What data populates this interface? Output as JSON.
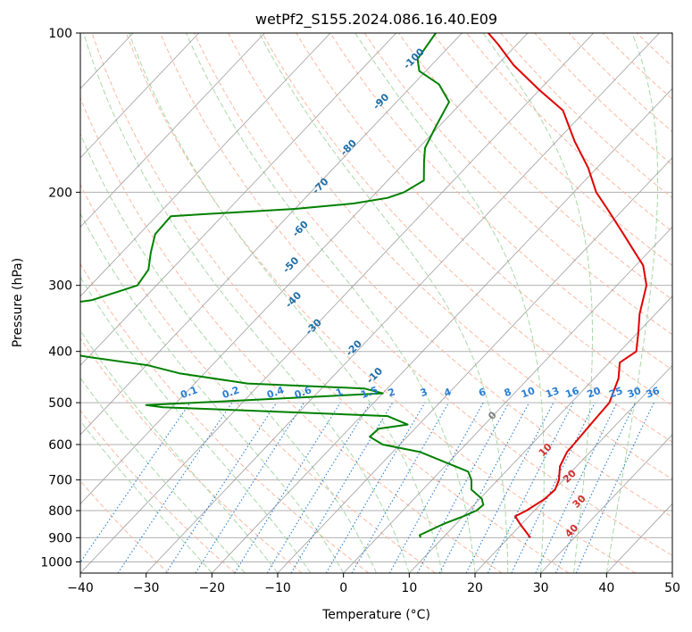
{
  "chart_data": {
    "type": "line",
    "subtype": "skew-t log-p diagram",
    "title": "wetPf2_S155.2024.086.16.40.E09",
    "xlabel": "Temperature (°C)",
    "ylabel": "Pressure (hPa)",
    "xlim": [
      -40,
      50
    ],
    "ylim": [
      1050,
      100
    ],
    "y_scale": "log",
    "grid": true,
    "x_ticks": [
      -40,
      -30,
      -20,
      -10,
      0,
      10,
      20,
      30,
      40,
      50
    ],
    "y_ticks": [
      100,
      200,
      300,
      400,
      500,
      600,
      700,
      800,
      900,
      1000
    ],
    "colors": {
      "temperature": "#e00000",
      "dewpoint": "#008000",
      "dry_adiabat": "#fcb8a0",
      "moist_adiabat": "#a8d8a8",
      "mixing_ratio": "#2a7fd4",
      "isotherm": "#999999",
      "cold_isotherm_label": "#1f6fa8",
      "warm_isotherm_label": "#d03030",
      "zero_label": "#808080"
    },
    "series": [
      {
        "key": "temperature",
        "points": [
          [
            23.3,
            900
          ],
          [
            19.9,
            850
          ],
          [
            17.9,
            820
          ],
          [
            18.8,
            800
          ],
          [
            19.9,
            760
          ],
          [
            20.1,
            730
          ],
          [
            19.3,
            700
          ],
          [
            17.5,
            660
          ],
          [
            16.5,
            620
          ],
          [
            16.4,
            600
          ],
          [
            16.1,
            550
          ],
          [
            15.8,
            500
          ],
          [
            13.7,
            450
          ],
          [
            11.6,
            420
          ],
          [
            12.5,
            400
          ],
          [
            10.2,
            370
          ],
          [
            7.6,
            340
          ],
          [
            4.5,
            300
          ],
          [
            1.1,
            275
          ],
          [
            -2.0,
            260
          ],
          [
            -6.4,
            240
          ],
          [
            -12.5,
            215
          ],
          [
            -16.6,
            200
          ],
          [
            -21.3,
            180
          ],
          [
            -27.3,
            160
          ],
          [
            -33.5,
            140
          ],
          [
            -40.1,
            128
          ],
          [
            -47.5,
            115
          ],
          [
            -52.9,
            105
          ],
          [
            -56.0,
            100
          ]
        ]
      },
      {
        "key": "dewpoint",
        "points": [
          [
            6.6,
            900
          ],
          [
            6.1,
            890
          ],
          [
            8.0,
            850
          ],
          [
            10.0,
            820
          ],
          [
            11.2,
            800
          ],
          [
            11.4,
            780
          ],
          [
            10.3,
            760
          ],
          [
            7.4,
            730
          ],
          [
            6.0,
            700
          ],
          [
            4.3,
            675
          ],
          [
            -5.8,
            620
          ],
          [
            -12.6,
            600
          ],
          [
            -15.7,
            580
          ],
          [
            -15.5,
            560
          ],
          [
            -11.7,
            550
          ],
          [
            -16.0,
            530
          ],
          [
            -51.4,
            510
          ],
          [
            -54.3,
            505
          ],
          [
            -40.2,
            495
          ],
          [
            -20.0,
            480
          ],
          [
            -23.5,
            470
          ],
          [
            -42.0,
            460
          ],
          [
            -53.8,
            440
          ],
          [
            -59.7,
            425
          ],
          [
            -69.9,
            410
          ],
          [
            -79.0,
            395
          ],
          [
            -87.5,
            370
          ],
          [
            -95.0,
            345
          ],
          [
            -84.5,
            330
          ],
          [
            -77.7,
            320
          ],
          [
            -72.9,
            300
          ],
          [
            -73.5,
            280
          ],
          [
            -75.6,
            260
          ],
          [
            -77.6,
            240
          ],
          [
            -77.8,
            222
          ],
          [
            -73.0,
            220
          ],
          [
            -60.0,
            215
          ],
          [
            -51.8,
            210
          ],
          [
            -47.5,
            205
          ],
          [
            -45.8,
            200
          ],
          [
            -44.5,
            190
          ],
          [
            -47.2,
            175
          ],
          [
            -49.0,
            165
          ],
          [
            -50.5,
            150
          ],
          [
            -52.0,
            135
          ],
          [
            -56.1,
            125
          ],
          [
            -61.0,
            118
          ],
          [
            -63.0,
            112
          ],
          [
            -64.0,
            100
          ]
        ]
      }
    ],
    "dry_adiabat_labels": [
      "-100",
      "-90",
      "-80",
      "-70",
      "-60",
      "-50",
      "-40",
      "-30",
      "-20",
      "-10",
      "0",
      "10",
      "20",
      "30",
      "40"
    ],
    "mixing_ratio_labels": [
      "0.1",
      "0.2",
      "0.4",
      "0.6",
      "1",
      "1.5",
      "2",
      "3",
      "4",
      "6",
      "8",
      "10",
      "13",
      "16",
      "20",
      "25",
      "30",
      "36"
    ]
  }
}
